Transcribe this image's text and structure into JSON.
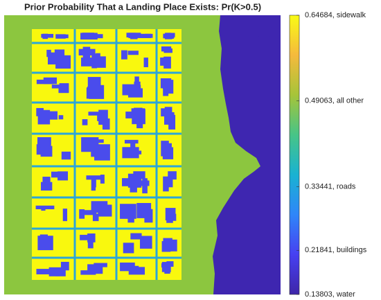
{
  "title": "Prior Probability That a Landing Place Exists: Pr(K>0.5)",
  "colorbar": {
    "clim": [
      0.13803,
      0.64684
    ],
    "colormap": [
      "#3e26a8",
      "#4740f1",
      "#2f86f9",
      "#19b2d2",
      "#47c487",
      "#a6c439",
      "#f5ba3c",
      "#f9fb15"
    ],
    "ticks": [
      {
        "value": 0.64684,
        "label": "0.64684, sidewalk"
      },
      {
        "value": 0.49063,
        "label": "0.49063, all other"
      },
      {
        "value": 0.33441,
        "label": "0.33441, roads"
      },
      {
        "value": 0.21841,
        "label": "0.21841, buildings"
      },
      {
        "value": 0.13803,
        "label": "0.13803, water"
      }
    ]
  }
}
